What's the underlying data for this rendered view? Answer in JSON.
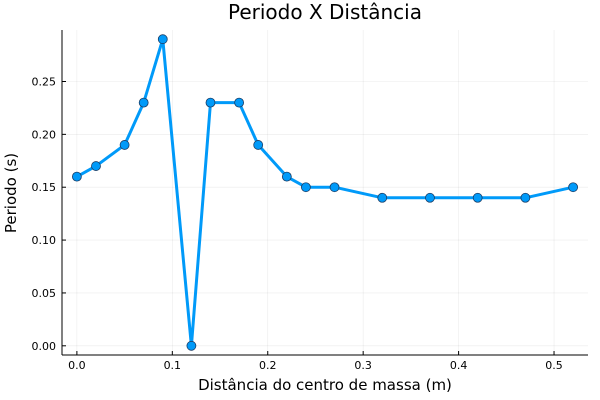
{
  "chart_data": {
    "type": "line",
    "title": "Periodo X Distância",
    "xlabel": "Distância do centro de massa (m)",
    "ylabel": "Periodo (s)",
    "xlim": [
      -0.0156,
      0.5356
    ],
    "ylim": [
      -0.0087,
      0.2987
    ],
    "xticks": [
      0.0,
      0.1,
      0.2,
      0.3,
      0.4,
      0.5
    ],
    "xtick_labels": [
      "0.0",
      "0.1",
      "0.2",
      "0.3",
      "0.4",
      "0.5"
    ],
    "yticks": [
      0.0,
      0.05,
      0.1,
      0.15,
      0.2,
      0.25
    ],
    "ytick_labels": [
      "0.00",
      "0.05",
      "0.10",
      "0.15",
      "0.20",
      "0.25"
    ],
    "grid": true,
    "legend": "none",
    "series": [
      {
        "color": "#009af9",
        "marker": "circle",
        "x": [
          0.0,
          0.02,
          0.05,
          0.07,
          0.09,
          0.12,
          0.14,
          0.17,
          0.19,
          0.22,
          0.24,
          0.27,
          0.32,
          0.37,
          0.42,
          0.47,
          0.52
        ],
        "y": [
          0.16,
          0.17,
          0.19,
          0.23,
          0.29,
          0.0,
          0.23,
          0.23,
          0.19,
          0.16,
          0.15,
          0.15,
          0.14,
          0.14,
          0.14,
          0.14,
          0.15
        ]
      }
    ]
  }
}
